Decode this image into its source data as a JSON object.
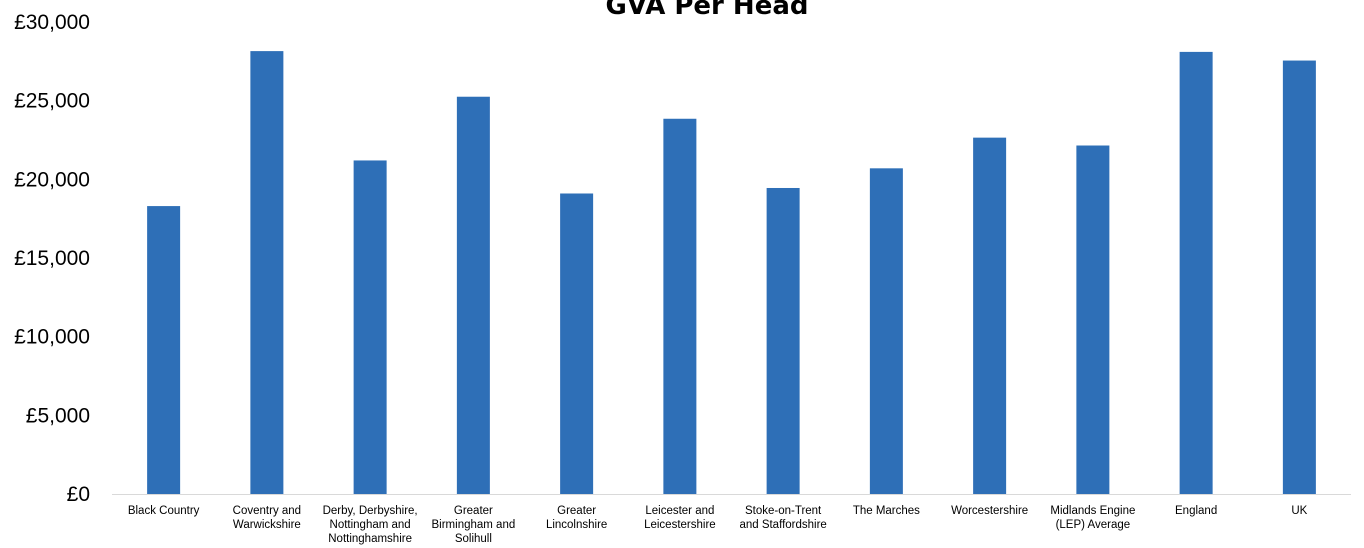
{
  "chart_data": {
    "type": "bar",
    "title": "GVA Per Head",
    "xlabel": "",
    "ylabel": "",
    "ylim": [
      0,
      30000
    ],
    "yticks": [
      0,
      5000,
      10000,
      15000,
      20000,
      25000,
      30000
    ],
    "ytick_labels": [
      "£0",
      "£5,000",
      "£10,000",
      "£15,000",
      "£20,000",
      "£25,000",
      "£30,000"
    ],
    "grid": false,
    "legend": "none",
    "bar_color": "#2E6FB7",
    "categories": [
      [
        "Black Country"
      ],
      [
        "Coventry and",
        "Warwickshire"
      ],
      [
        "Derby, Derbyshire,",
        "Nottingham and",
        "Nottinghamshire"
      ],
      [
        "Greater",
        "Birmingham and",
        "Solihull"
      ],
      [
        "Greater",
        "Lincolnshire"
      ],
      [
        "Leicester and",
        "Leicestershire"
      ],
      [
        "Stoke-on-Trent",
        "and Staffordshire"
      ],
      [
        "The Marches"
      ],
      [
        "Worcestershire"
      ],
      [
        "Midlands Engine",
        "(LEP) Average"
      ],
      [
        "England"
      ],
      [
        "UK"
      ]
    ],
    "values": [
      18300,
      28150,
      21200,
      25250,
      19100,
      23850,
      19450,
      20700,
      22650,
      22150,
      28100,
      27550
    ]
  }
}
